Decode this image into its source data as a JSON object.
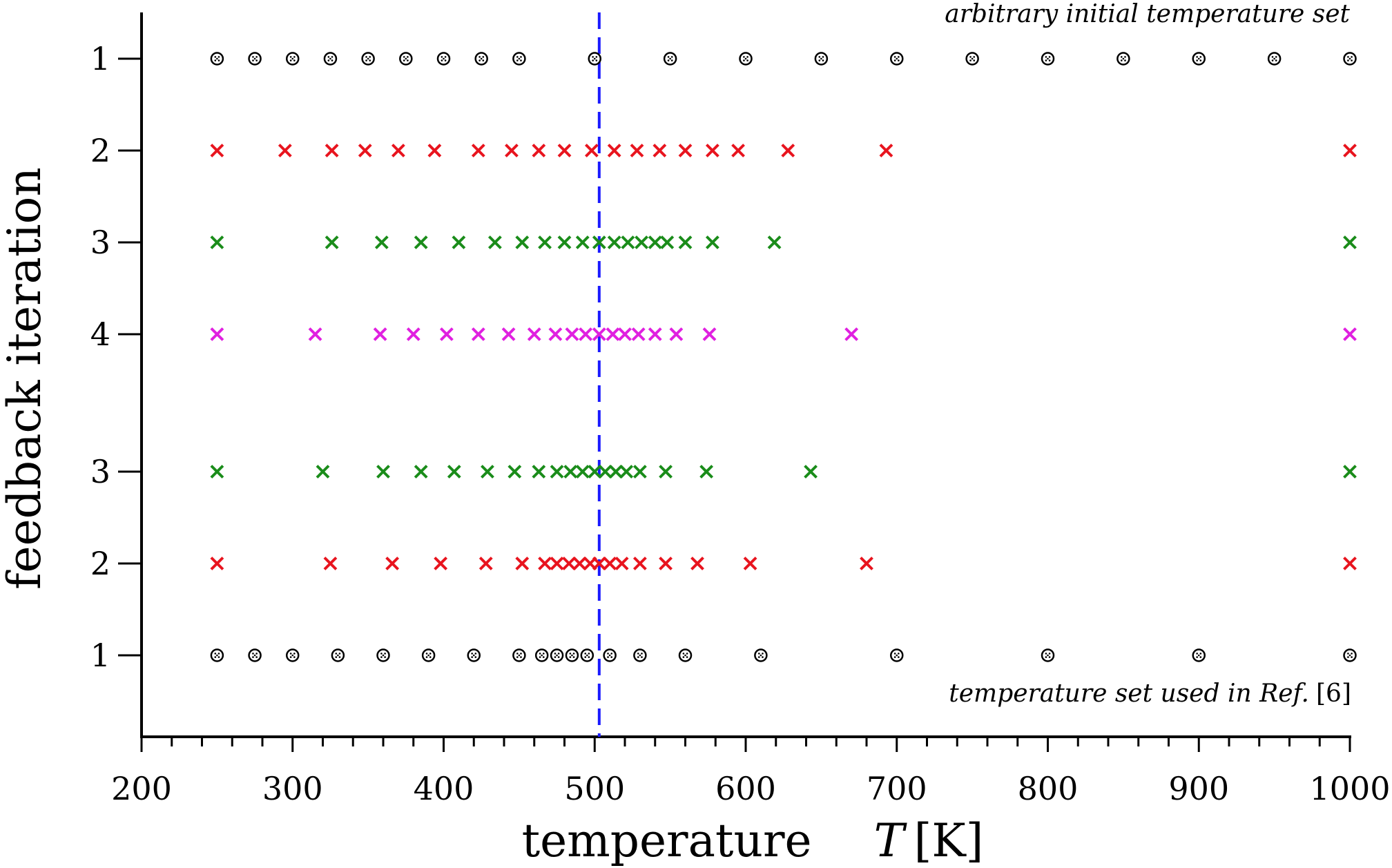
{
  "chart_data": {
    "type": "scatter",
    "xlim": [
      200,
      1000
    ],
    "x_ticks": [
      200,
      300,
      400,
      500,
      600,
      700,
      800,
      900,
      1000
    ],
    "xlabel": {
      "text": "temperature",
      "symbol": "T",
      "unit": "[K]"
    },
    "ylabel": "feedback iteration",
    "y_rows": [
      "1",
      "2",
      "3",
      "4",
      "3",
      "2",
      "1"
    ],
    "reference_line": {
      "x": 503,
      "color": "#1a1aff",
      "style": "dashed"
    },
    "annotations": {
      "top": "arbitrary initial temperature set",
      "bottom_text": "temperature set used in Ref.",
      "bottom_ref": "[6]"
    },
    "colors": {
      "circle": "#000000",
      "red": "#e8141e",
      "green": "#1a8c1a",
      "magenta": "#e020e0"
    },
    "series": [
      {
        "row": 0,
        "marker": "circle",
        "color": "circle",
        "x": [
          250,
          275,
          300,
          325,
          350,
          375,
          400,
          425,
          450,
          500,
          550,
          600,
          650,
          700,
          750,
          800,
          850,
          900,
          950,
          1000
        ]
      },
      {
        "row": 1,
        "marker": "x",
        "color": "red",
        "x": [
          250,
          295,
          326,
          348,
          370,
          394,
          423,
          445,
          463,
          480,
          498,
          513,
          528,
          543,
          560,
          578,
          595,
          628,
          693,
          1000
        ]
      },
      {
        "row": 2,
        "marker": "x",
        "color": "green",
        "x": [
          250,
          326,
          359,
          385,
          410,
          434,
          452,
          467,
          480,
          492,
          503,
          513,
          522,
          531,
          540,
          548,
          560,
          578,
          619,
          1000
        ]
      },
      {
        "row": 3,
        "marker": "x",
        "color": "magenta",
        "x": [
          250,
          315,
          358,
          380,
          402,
          423,
          443,
          460,
          474,
          485,
          494,
          503,
          512,
          520,
          529,
          540,
          554,
          576,
          670,
          1000
        ]
      },
      {
        "row": 4,
        "marker": "x",
        "color": "green",
        "x": [
          250,
          320,
          360,
          385,
          407,
          429,
          447,
          463,
          475,
          484,
          492,
          500,
          507,
          514,
          521,
          530,
          547,
          574,
          643,
          1000
        ]
      },
      {
        "row": 5,
        "marker": "x",
        "color": "red",
        "x": [
          250,
          325,
          366,
          398,
          428,
          452,
          467,
          475,
          483,
          490,
          497,
          503,
          510,
          518,
          530,
          547,
          568,
          603,
          680,
          1000
        ]
      },
      {
        "row": 6,
        "marker": "circle",
        "color": "circle",
        "x": [
          250,
          275,
          300,
          330,
          360,
          390,
          420,
          450,
          465,
          475,
          485,
          495,
          510,
          530,
          560,
          610,
          700,
          800,
          900,
          1000
        ]
      }
    ]
  }
}
